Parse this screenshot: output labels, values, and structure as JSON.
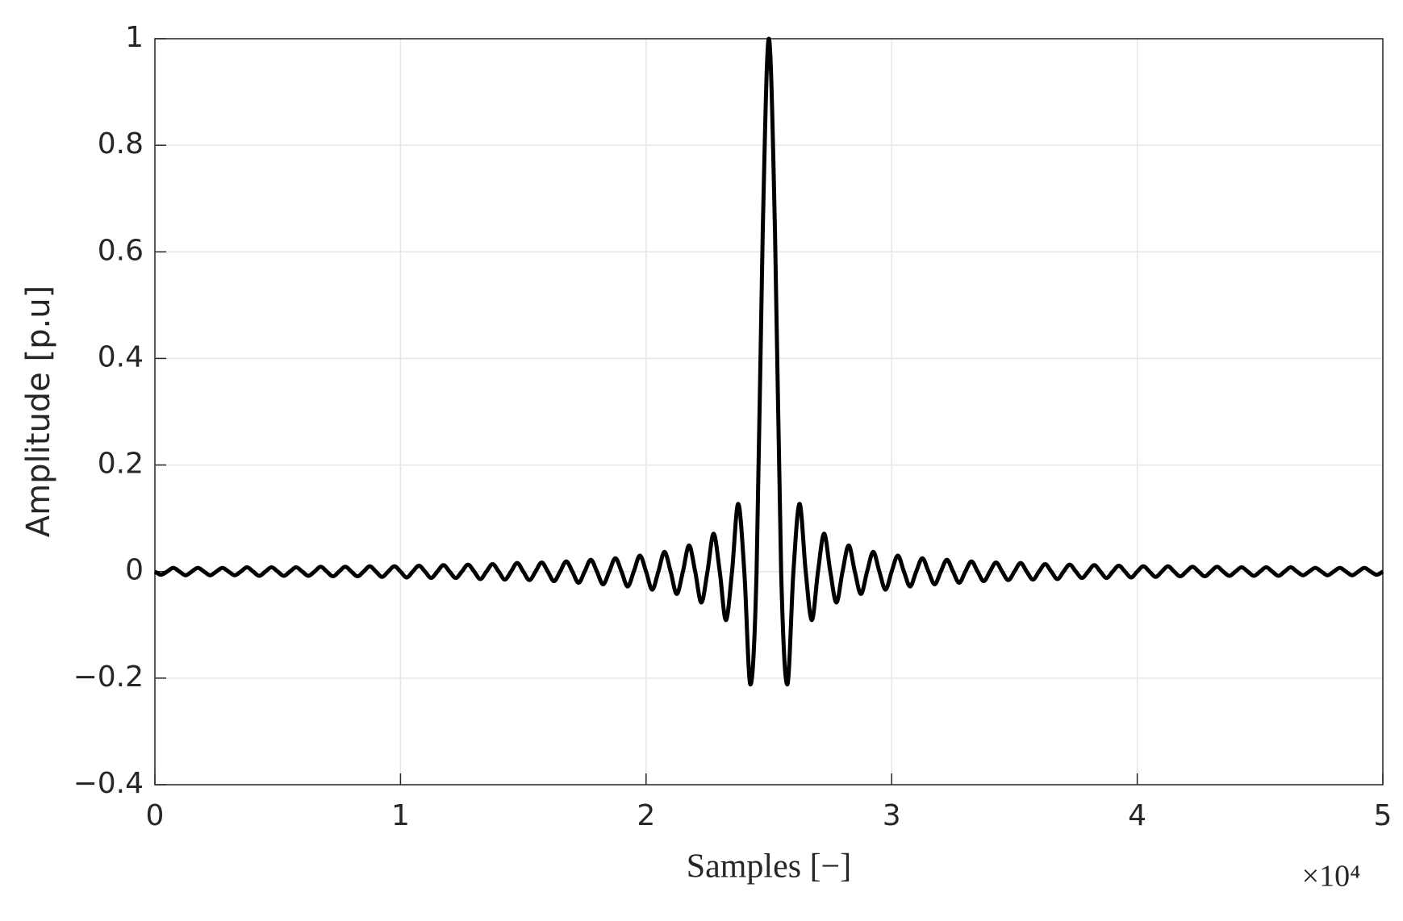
{
  "chart_data": {
    "type": "line",
    "x_label": "Samples [−]",
    "y_label": "Amplitude [p.u]",
    "x_multiplier": "×10⁴",
    "xlim": [
      0,
      5
    ],
    "xticks": [
      0,
      1,
      2,
      3,
      4,
      5
    ],
    "ylim": [
      -0.4,
      1
    ],
    "yticks": [
      {
        "value": -0.4,
        "label": "−0.4"
      },
      {
        "value": -0.2,
        "label": "−0.2"
      },
      0,
      0.2,
      0.4,
      0.6,
      0.8,
      1
    ],
    "grid": true,
    "series": [
      {
        "color": "#000000",
        "x": [
          0,
          0.025,
          0.05,
          0.075,
          0.1,
          0.125,
          0.15,
          0.175,
          0.2,
          0.225,
          0.25,
          0.275,
          0.3,
          0.325,
          0.35,
          0.375,
          0.4,
          0.425,
          0.45,
          0.475,
          0.5,
          0.525,
          0.55,
          0.575,
          0.6,
          0.625,
          0.65,
          0.675,
          0.7,
          0.725,
          0.75,
          0.775,
          0.8,
          0.825,
          0.85,
          0.875,
          0.9,
          0.925,
          0.95,
          0.975,
          1,
          1.025,
          1.05,
          1.075,
          1.1,
          1.125,
          1.15,
          1.175,
          1.2,
          1.225,
          1.25,
          1.275,
          1.3,
          1.325,
          1.35,
          1.375,
          1.4,
          1.425,
          1.45,
          1.475,
          1.5,
          1.525,
          1.55,
          1.575,
          1.6,
          1.625,
          1.65,
          1.675,
          1.7,
          1.725,
          1.75,
          1.775,
          1.8,
          1.825,
          1.85,
          1.875,
          1.9,
          1.925,
          1.95,
          1.975,
          2,
          2.025,
          2.05,
          2.075,
          2.1,
          2.125,
          2.15,
          2.175,
          2.2,
          2.225,
          2.25,
          2.275,
          2.3,
          2.325,
          2.35,
          2.375,
          2.4,
          2.425,
          2.45,
          2.475,
          2.5,
          2.525,
          2.55,
          2.575,
          2.6,
          2.625,
          2.65,
          2.675,
          2.7,
          2.725,
          2.75,
          2.775,
          2.8,
          2.825,
          2.85,
          2.875,
          2.9,
          2.925,
          2.95,
          2.975,
          3,
          3.025,
          3.05,
          3.075,
          3.1,
          3.125,
          3.15,
          3.175,
          3.2,
          3.225,
          3.25,
          3.275,
          3.3,
          3.325,
          3.35,
          3.375,
          3.4,
          3.425,
          3.45,
          3.475,
          3.5,
          3.525,
          3.55,
          3.575,
          3.6,
          3.625,
          3.65,
          3.675,
          3.7,
          3.725,
          3.75,
          3.775,
          3.8,
          3.825,
          3.85,
          3.875,
          3.9,
          3.925,
          3.95,
          3.975,
          4,
          4.025,
          4.05,
          4.075,
          4.1,
          4.125,
          4.15,
          4.175,
          4.2,
          4.225,
          4.25,
          4.275,
          4.3,
          4.325,
          4.35,
          4.375,
          4.4,
          4.425,
          4.45,
          4.475,
          4.5,
          4.525,
          4.55,
          4.575,
          4.6,
          4.625,
          4.65,
          4.675,
          4.7,
          4.725,
          4.75,
          4.775,
          4.8,
          4.825,
          4.85,
          4.875,
          4.9,
          4.925,
          4.95,
          4.975,
          5
        ],
        "values": [
          0,
          -0.006,
          0,
          0.007,
          0,
          -0.007,
          0,
          0.007,
          0,
          -0.007,
          0,
          0.007,
          0,
          -0.007,
          0,
          0.008,
          0,
          -0.008,
          0,
          0.008,
          0,
          -0.008,
          0,
          0.008,
          0,
          -0.008,
          0,
          0.009,
          0,
          -0.009,
          0,
          0.009,
          0,
          -0.009,
          0,
          0.01,
          0,
          -0.01,
          0,
          0.01,
          0,
          -0.011,
          0,
          0.011,
          0,
          -0.012,
          0,
          0.012,
          0,
          -0.012,
          0,
          0.013,
          0,
          -0.014,
          0,
          0.014,
          0,
          -0.015,
          0,
          0.016,
          0,
          -0.016,
          0,
          0.017,
          0,
          -0.018,
          0,
          0.019,
          0,
          -0.021,
          0,
          0.022,
          0,
          -0.024,
          0,
          0.025,
          0,
          -0.028,
          0,
          0.03,
          0,
          -0.034,
          0,
          0.037,
          0,
          -0.042,
          0,
          0.049,
          0,
          -0.058,
          0,
          0.071,
          0,
          -0.091,
          0,
          0.127,
          0,
          -0.212,
          0,
          0.637,
          1,
          0.637,
          0,
          -0.212,
          0,
          0.127,
          0,
          -0.091,
          0,
          0.071,
          0,
          -0.058,
          0,
          0.049,
          0,
          -0.042,
          0,
          0.037,
          0,
          -0.034,
          0,
          0.03,
          0,
          -0.028,
          0,
          0.025,
          0,
          -0.024,
          0,
          0.022,
          0,
          -0.021,
          0,
          0.019,
          0,
          -0.018,
          0,
          0.017,
          0,
          -0.016,
          0,
          0.016,
          0,
          -0.015,
          0,
          0.014,
          0,
          -0.014,
          0,
          0.013,
          0,
          -0.012,
          0,
          0.012,
          0,
          -0.012,
          0,
          0.011,
          0,
          -0.011,
          0,
          0.01,
          0,
          -0.01,
          0,
          0.01,
          0,
          -0.009,
          0,
          0.009,
          0,
          -0.009,
          0,
          0.009,
          0,
          -0.008,
          0,
          0.008,
          0,
          -0.008,
          0,
          0.008,
          0,
          -0.008,
          0,
          0.008,
          0,
          -0.007,
          0,
          0.007,
          0,
          -0.007,
          0,
          0.007,
          0,
          -0.007,
          0,
          0.007,
          0,
          -0.006,
          0
        ]
      }
    ]
  }
}
